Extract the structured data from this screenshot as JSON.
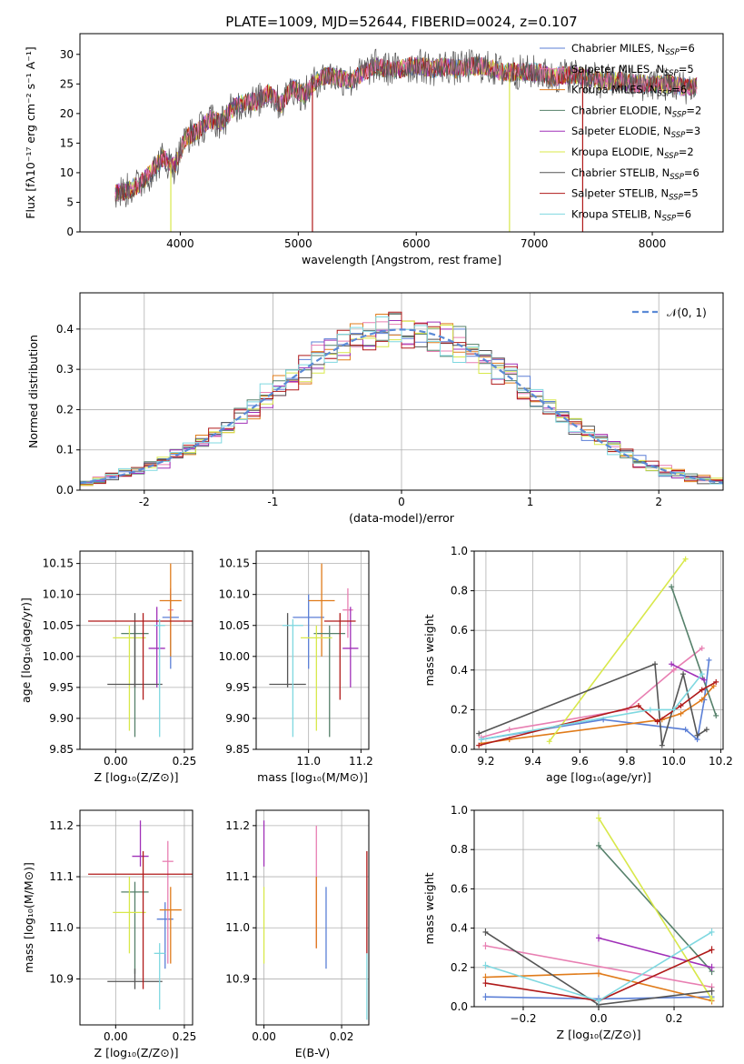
{
  "figure": {
    "title": "PLATE=1009, MJD=52644, FIBERID=0024, z=0.107"
  },
  "colors": {
    "chabrier_miles": "#5b7fd6",
    "salpeter_miles": "#e87fb2",
    "kroupa_miles": "#e07b1a",
    "chabrier_elodie": "#55806a",
    "salpeter_elodie": "#a030b8",
    "kroupa_elodie": "#d8e84a",
    "chabrier_stelib": "#555555",
    "salpeter_stelib": "#b01a1a",
    "kroupa_stelib": "#7fd8e0",
    "data_spectrum": "#808080",
    "normal_curve": "#5b8ad6",
    "grid": "#b0b0b0"
  },
  "chart_data": [
    {
      "id": "spectrum",
      "type": "line",
      "xlabel": "wavelength [Angstrom, rest frame]",
      "ylabel": "Flux [fλ10⁻¹⁷ erg cm⁻² s⁻¹ A⁻¹]",
      "xlim": [
        3150,
        8600
      ],
      "ylim": [
        0,
        33.5
      ],
      "xticks": [
        4000,
        5000,
        6000,
        7000,
        8000
      ],
      "yticks": [
        0,
        5,
        10,
        15,
        20,
        25,
        30
      ],
      "grid": false,
      "legend_position": "top-right",
      "legend": [
        "Chabrier MILES, N_SSP=6",
        "Salpeter MILES, N_SSP=5",
        "Kroupa MILES, N_SSP=6",
        "Chabrier ELODIE, N_SSP=2",
        "Salpeter ELODIE, N_SSP=3",
        "Kroupa ELODIE, N_SSP=2",
        "Chabrier STELIB, N_SSP=6",
        "Salpeter STELIB, N_SSP=5",
        "Kroupa STELIB, N_SSP=6"
      ],
      "continuum": {
        "x": [
          3450,
          3550,
          3650,
          3750,
          3850,
          3950,
          4050,
          4150,
          4250,
          4350,
          4450,
          4550,
          4650,
          4750,
          4850,
          4950,
          5050,
          5150,
          5250,
          5350,
          5450,
          5550,
          5650,
          5750,
          5850,
          5950,
          6050,
          6150,
          6250,
          6350,
          6450,
          6550,
          6650,
          6750,
          6850,
          6950,
          7050,
          7150,
          7250,
          7350,
          7450,
          7550,
          7650,
          7750,
          7850,
          7950,
          8050,
          8150,
          8250,
          8350
        ],
        "y": [
          6.5,
          7,
          8,
          10,
          12.5,
          11,
          16,
          17,
          19,
          18.5,
          21,
          22,
          22,
          23.5,
          21.5,
          24.5,
          23,
          25.5,
          26.5,
          26,
          25.5,
          27,
          28,
          27.5,
          27.5,
          28,
          28,
          27.5,
          28,
          27.5,
          28,
          28,
          27.5,
          27,
          27,
          27,
          27,
          26,
          26.5,
          26.5,
          26,
          25.5,
          25.5,
          25.5,
          25,
          25,
          25,
          25,
          24.5,
          24.5
        ]
      },
      "drop_lines_x": [
        3920,
        5120,
        6790,
        7410
      ]
    },
    {
      "id": "residuals",
      "type": "histogram",
      "xlabel": "(data-model)/error",
      "ylabel": "Normed distribution",
      "xlim": [
        -2.5,
        2.5
      ],
      "ylim": [
        0,
        0.49
      ],
      "xticks": [
        -2,
        -1,
        0,
        1,
        2
      ],
      "yticks": [
        0.0,
        0.1,
        0.2,
        0.3,
        0.4
      ],
      "grid": true,
      "legend_position": "top-right",
      "legend": [
        "𝒩(0, 1)"
      ],
      "bin_width": 0.1
    },
    {
      "id": "age_vs_z",
      "type": "scatter",
      "xlabel": "Z [log₁₀(Z/Z⊙)]",
      "ylabel": "age  [log₁₀(age/yr)]",
      "xlim": [
        -0.13,
        0.28
      ],
      "ylim": [
        9.85,
        10.17
      ],
      "xticks": [
        0.0,
        0.25
      ],
      "xticklabels": [
        "0.00",
        "0.25"
      ],
      "yticks": [
        9.85,
        9.9,
        9.95,
        10.0,
        10.05,
        10.1,
        10.15
      ],
      "yticklabels": [
        "9.85",
        "9.90",
        "9.95",
        "10.00",
        "10.05",
        "10.10",
        "10.15"
      ],
      "grid": true
    },
    {
      "id": "age_vs_mass",
      "type": "scatter",
      "xlabel": "mass [log₁₀(M/M⊙)]",
      "xlim": [
        10.8,
        11.23
      ],
      "ylim": [
        9.85,
        10.17
      ],
      "xticks": [
        11.0,
        11.2
      ],
      "xticklabels": [
        "11.0",
        "11.2"
      ],
      "yticks": [
        9.85,
        9.9,
        9.95,
        10.0,
        10.05,
        10.1,
        10.15
      ],
      "yticklabels": [
        "9.85",
        "9.90",
        "9.95",
        "10.00",
        "10.05",
        "10.10",
        "10.15"
      ],
      "grid": true
    },
    {
      "id": "weight_vs_age",
      "type": "line",
      "xlabel": "age  [log₁₀(age/yr)]",
      "ylabel": "mass weight",
      "xlim": [
        9.15,
        10.21
      ],
      "ylim": [
        0,
        1.0
      ],
      "xticks": [
        9.2,
        9.4,
        9.6,
        9.8,
        10.0,
        10.2
      ],
      "xticklabels": [
        "9.2",
        "9.4",
        "9.6",
        "9.8",
        "10.0",
        "10.2"
      ],
      "yticks": [
        0,
        0.2,
        0.4,
        0.6,
        0.8,
        1.0
      ],
      "yticklabels": [
        "0.0",
        "0.2",
        "0.4",
        "0.6",
        "0.8",
        "1.0"
      ],
      "grid": true
    },
    {
      "id": "mass_vs_z",
      "type": "scatter",
      "xlabel": "Z [log₁₀(Z/Z⊙)]",
      "ylabel": "mass [log₁₀(M/M⊙)]",
      "xlim": [
        -0.13,
        0.28
      ],
      "ylim": [
        10.81,
        11.23
      ],
      "xticks": [
        0.0,
        0.25
      ],
      "xticklabels": [
        "0.00",
        "0.25"
      ],
      "yticks": [
        10.9,
        11.0,
        11.1,
        11.2
      ],
      "yticklabels": [
        "10.9",
        "11.0",
        "11.1",
        "11.2"
      ],
      "grid": true
    },
    {
      "id": "mass_vs_ebv",
      "type": "scatter",
      "xlabel": "E(B-V)",
      "xlim": [
        -0.002,
        0.027
      ],
      "ylim": [
        10.81,
        11.23
      ],
      "xticks": [
        0.0,
        0.02
      ],
      "xticklabels": [
        "0.00",
        "0.02"
      ],
      "yticks": [
        10.9,
        11.0,
        11.1,
        11.2
      ],
      "yticklabels": [
        "10.9",
        "11.0",
        "11.1",
        "11.2"
      ],
      "grid": true
    },
    {
      "id": "weight_vs_z",
      "type": "line",
      "xlabel": "Z [log₁₀(Z/Z⊙)]",
      "ylabel": "mass weight",
      "xlim": [
        -0.33,
        0.33
      ],
      "ylim": [
        0,
        1.0
      ],
      "xticks": [
        -0.2,
        0.0,
        0.2
      ],
      "xticklabels": [
        "−0.2",
        "0.0",
        "0.2"
      ],
      "yticks": [
        0,
        0.2,
        0.4,
        0.6,
        0.8,
        1.0
      ],
      "yticklabels": [
        "0.0",
        "0.2",
        "0.4",
        "0.6",
        "0.8",
        "1.0"
      ],
      "grid": true
    }
  ],
  "fits": [
    {
      "name": "Chabrier MILES",
      "color": "#5b7fd6",
      "z": 0.12,
      "z_err": 0.08,
      "age": 10.063,
      "age_err": [
        0.013,
        0.013
      ],
      "mass": 11.02,
      "mass_err": [
        0.0,
        0.0
      ],
      "mass_x": [
        0.12,
        0.19
      ],
      "ebv": 0.025,
      "ebv_err": [
        0.0,
        0.0
      ],
      "mvsz_mass": 11.017,
      "ages": [
        9.18,
        9.7,
        10.05,
        10.1,
        10.13,
        10.15
      ],
      "weights": [
        0.05,
        0.15,
        0.1,
        0.05,
        0.25,
        0.45
      ],
      "zs": [
        -0.3,
        0.0,
        0.3
      ],
      "zweights": [
        0.05,
        0.04,
        0.05
      ]
    },
    {
      "name": "Salpeter MILES",
      "color": "#e87fb2",
      "z": 0.2,
      "z_err": 0.02,
      "age": 10.075,
      "age_err": [
        0.0,
        0.04
      ],
      "mass": 11.15,
      "mass_err": [
        0.0,
        0.0
      ],
      "mass_x": [
        11.14,
        11.17
      ],
      "ebv": 0.014,
      "ebv_err": [
        0.0,
        0.0
      ],
      "mvsz_mass": 11.13,
      "ages": [
        9.18,
        9.3,
        9.8,
        10.0,
        10.12
      ],
      "weights": [
        0.06,
        0.1,
        0.2,
        0.4,
        0.51
      ],
      "zs": [
        -0.3,
        0.3
      ],
      "zweights": [
        0.31,
        0.1
      ]
    },
    {
      "name": "Kroupa MILES",
      "color": "#e07b1a",
      "z": 0.2,
      "z_err": 0.04,
      "age": 10.09,
      "age_err": [
        0.0,
        0.06
      ],
      "mass": 11.04,
      "mass_err": [
        0.0,
        0.0
      ],
      "mass_x": [
        10.97,
        11.07
      ],
      "ebv": 0.014,
      "ebv_err": [
        0.0,
        0.0
      ],
      "mvsz_mass": 11.035,
      "ages": [
        9.18,
        9.3,
        9.95,
        10.03,
        10.12,
        10.17
      ],
      "weights": [
        0.03,
        0.05,
        0.15,
        0.18,
        0.25,
        0.32
      ],
      "zs": [
        -0.3,
        0.0,
        0.3
      ],
      "zweights": [
        0.15,
        0.17,
        0.03
      ]
    },
    {
      "name": "Chabrier ELODIE",
      "color": "#55806a",
      "z": 0.08,
      "z_err": 0.07,
      "age": 10.037,
      "age_err": [
        0.17,
        0.0
      ],
      "mass": 11.07,
      "mass_err": [
        0.0,
        0.0
      ],
      "mass_x": [
        10.92,
        11.07
      ],
      "ebv": 0.0,
      "ebv_err": [
        0.0,
        0.0
      ],
      "mvsz_mass": 11.07,
      "ages": [
        9.99,
        10.18
      ],
      "weights": [
        0.82,
        0.17
      ],
      "zs": [
        0.0,
        0.3
      ],
      "zweights": [
        0.82,
        0.18
      ]
    },
    {
      "name": "Salpeter ELODIE",
      "color": "#a030b8",
      "z": 0.12,
      "z_err": 0.04,
      "age": 10.012,
      "age_err": [
        0.0,
        0.065
      ],
      "mass": 11.14,
      "mass_err": [
        0.0,
        0.0
      ],
      "mass_x": [
        11.14,
        11.2
      ],
      "ebv": 0.0,
      "ebv_err": [
        0.0,
        0.0
      ],
      "mvsz_mass": 11.14,
      "ages": [
        9.99,
        10.13
      ],
      "weights": [
        0.43,
        0.35
      ],
      "zs": [
        0.0,
        0.3
      ],
      "zweights": [
        0.35,
        0.2
      ]
    },
    {
      "name": "Kroupa ELODIE",
      "color": "#d8e84a",
      "z": 0.05,
      "z_err": 0.06,
      "age": 10.03,
      "age_err": [
        0.15,
        0.0
      ],
      "mass": 11.03,
      "mass_err": [
        0.0,
        0.0
      ],
      "mass_x": [
        10.94,
        11.08
      ],
      "ebv": 0.0,
      "ebv_err": [
        0.0,
        0.0
      ],
      "mvsz_mass": 11.03,
      "ages": [
        9.47,
        10.05
      ],
      "weights": [
        0.04,
        0.96
      ],
      "zs": [
        0.0,
        0.3
      ],
      "zweights": [
        0.96,
        0.04
      ]
    },
    {
      "name": "Chabrier STELIB",
      "color": "#555555",
      "z": 0.07,
      "z_err": 0.1,
      "age": 9.955,
      "age_err": [
        0.05,
        0.0
      ],
      "mass": 10.895,
      "mass_err": [
        0.0,
        0.0
      ],
      "mass_x": [
        10.87,
        10.96
      ],
      "ebv": 0.0,
      "ebv_err": [
        0.0,
        0.0
      ],
      "mvsz_mass": 10.895,
      "ages": [
        9.17,
        9.92,
        9.95,
        10.04,
        10.1,
        10.14
      ],
      "weights": [
        0.08,
        0.43,
        0.02,
        0.38,
        0.07,
        0.1
      ],
      "zs": [
        -0.3,
        0.0,
        0.3
      ],
      "zweights": [
        0.38,
        0.01,
        0.08
      ]
    },
    {
      "name": "Salpeter STELIB",
      "color": "#b01a1a",
      "z": 0.1,
      "z_err": 0.2,
      "age": 10.057,
      "age_err": [
        0.0,
        0.0
      ],
      "mass": 11.105,
      "mass_err": [
        0.0,
        0.0
      ],
      "mass_x": [
        11.12,
        11.12
      ],
      "ebv": 0.027,
      "ebv_err": [
        0.0,
        0.0
      ],
      "mvsz_mass": 11.105,
      "ages": [
        9.17,
        9.85,
        9.93,
        10.03,
        10.12,
        10.18
      ],
      "weights": [
        0.02,
        0.22,
        0.14,
        0.22,
        0.3,
        0.34
      ],
      "zs": [
        -0.3,
        0.0,
        0.3
      ],
      "zweights": [
        0.12,
        0.03,
        0.29
      ]
    },
    {
      "name": "Kroupa STELIB",
      "color": "#7fd8e0",
      "z": 0.05,
      "z_err": 0.08,
      "age": 10.045,
      "age_err": [
        0.17,
        0.0
      ],
      "mass": 10.95,
      "mass_err": [
        0.0,
        0.0
      ],
      "mass_x": [
        10.87,
        10.96
      ],
      "ebv": 0.027,
      "ebv_err": [
        0.0,
        0.0
      ],
      "mvsz_mass": 10.95,
      "ages": [
        9.18,
        9.9,
        10.0,
        10.12
      ],
      "weights": [
        0.05,
        0.2,
        0.2,
        0.38
      ],
      "zs": [
        -0.3,
        0.0,
        0.3
      ],
      "zweights": [
        0.21,
        0.03,
        0.38
      ]
    }
  ],
  "errorbars_age_z": [
    {
      "color": "#5b7fd6",
      "x": 0.2,
      "xerr": 0.03,
      "y": 10.063,
      "ylo": 9.98,
      "yhi": 10.1
    },
    {
      "color": "#e87fb2",
      "x": 0.2,
      "xerr": 0.01,
      "y": 10.075,
      "ylo": 10.03,
      "yhi": 10.11
    },
    {
      "color": "#e07b1a",
      "x": 0.2,
      "xerr": 0.04,
      "y": 10.09,
      "ylo": 10.0,
      "yhi": 10.15
    },
    {
      "color": "#55806a",
      "x": 0.07,
      "xerr": 0.05,
      "y": 10.037,
      "ylo": 9.87,
      "yhi": 10.05
    },
    {
      "color": "#a030b8",
      "x": 0.15,
      "xerr": 0.03,
      "y": 10.013,
      "ylo": 9.95,
      "yhi": 10.08
    },
    {
      "color": "#d8e84a",
      "x": 0.05,
      "xerr": 0.06,
      "y": 10.03,
      "ylo": 9.88,
      "yhi": 10.05
    },
    {
      "color": "#555555",
      "x": 0.07,
      "xerr": 0.1,
      "y": 9.955,
      "ylo": 9.95,
      "yhi": 10.07
    },
    {
      "color": "#b01a1a",
      "x": 0.1,
      "xerr": 0.2,
      "y": 10.057,
      "ylo": 9.93,
      "yhi": 10.07
    },
    {
      "color": "#7fd8e0",
      "x": 0.16,
      "xerr": 0.02,
      "y": 10.05,
      "ylo": 9.87,
      "yhi": 10.06
    }
  ]
}
